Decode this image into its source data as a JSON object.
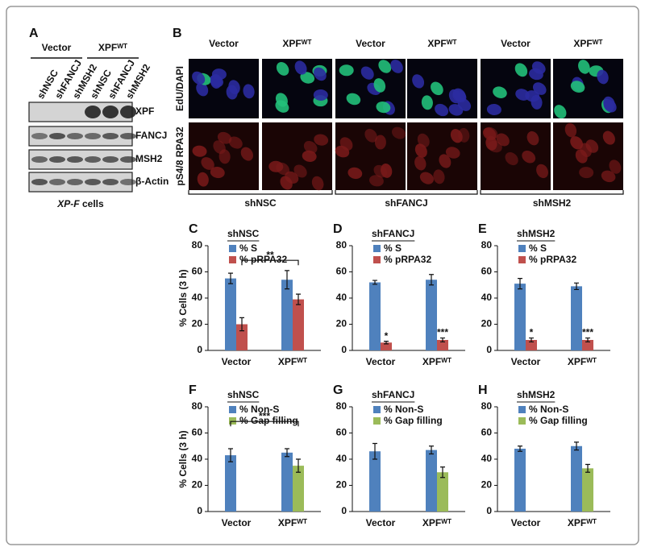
{
  "panel_a": {
    "label": "A",
    "groups": [
      "Vector",
      "XPFᵂᵀ"
    ],
    "lanes": [
      "shNSC",
      "shFANCJ",
      "shMSH2",
      "shNSC",
      "shFANCJ",
      "shMSH2"
    ],
    "blots": [
      "XPF",
      "FANCJ",
      "MSH2",
      "β-Actin"
    ],
    "caption_italic": "XP-F",
    "caption": "cells"
  },
  "panel_b": {
    "label": "B",
    "columns": [
      "Vector",
      "XPFᵂᵀ",
      "Vector",
      "XPFᵂᵀ",
      "Vector",
      "XPFᵂᵀ"
    ],
    "rows": [
      "EdU/DAPI",
      "pS4/8 RPA32"
    ],
    "groups": [
      "shNSC",
      "shFANCJ",
      "shMSH2"
    ]
  },
  "chart_data": [
    {
      "type": "bar",
      "panel": "C",
      "title": "shNSC",
      "ylabel": "% Cells (3 h)",
      "categories": [
        "Vector",
        "XPFᵂᵀ"
      ],
      "series": [
        {
          "name": "% S",
          "color": "#4f81bd",
          "values": [
            55,
            54
          ],
          "errors": [
            4,
            7
          ]
        },
        {
          "name": "% pRPA32",
          "color": "#c0504d",
          "values": [
            20,
            39
          ],
          "errors": [
            5,
            4
          ]
        }
      ],
      "ylim": [
        0,
        80
      ],
      "yticks": [
        0,
        20,
        40,
        60,
        80
      ],
      "bracket_label": "**"
    },
    {
      "type": "bar",
      "panel": "D",
      "title": "shFANCJ",
      "categories": [
        "Vector",
        "XPFᵂᵀ"
      ],
      "series": [
        {
          "name": "% S",
          "color": "#4f81bd",
          "values": [
            52,
            54
          ],
          "errors": [
            1.5,
            4
          ]
        },
        {
          "name": "% pRPA32",
          "color": "#c0504d",
          "values": [
            6,
            8
          ],
          "errors": [
            1,
            1.5
          ],
          "annotations": [
            "*",
            "***"
          ]
        }
      ],
      "ylim": [
        0,
        80
      ],
      "yticks": [
        0,
        20,
        40,
        60,
        80
      ]
    },
    {
      "type": "bar",
      "panel": "E",
      "title": "shMSH2",
      "categories": [
        "Vector",
        "XPFᵂᵀ"
      ],
      "series": [
        {
          "name": "% S",
          "color": "#4f81bd",
          "values": [
            51,
            49
          ],
          "errors": [
            4,
            2.5
          ]
        },
        {
          "name": "% pRPA32",
          "color": "#c0504d",
          "values": [
            8,
            8
          ],
          "errors": [
            1.5,
            1.5
          ],
          "annotations": [
            "*",
            "***"
          ]
        }
      ],
      "ylim": [
        0,
        80
      ],
      "yticks": [
        0,
        20,
        40,
        60,
        80
      ]
    },
    {
      "type": "bar",
      "panel": "F",
      "title": "shNSC",
      "ylabel": "% Cells (3 h)",
      "categories": [
        "Vector",
        "XPFᵂᵀ"
      ],
      "series": [
        {
          "name": "% Non-S",
          "color": "#4f81bd",
          "values": [
            43,
            45
          ],
          "errors": [
            5,
            3
          ]
        },
        {
          "name": "% Gap filling",
          "color": "#9bbb59",
          "values": [
            null,
            35
          ],
          "errors": [
            null,
            5
          ]
        }
      ],
      "ylim": [
        0,
        80
      ],
      "yticks": [
        0,
        20,
        40,
        60,
        80
      ],
      "bracket_label": "***"
    },
    {
      "type": "bar",
      "panel": "G",
      "title": "shFANCJ",
      "categories": [
        "Vector",
        "XPFᵂᵀ"
      ],
      "series": [
        {
          "name": "% Non-S",
          "color": "#4f81bd",
          "values": [
            46,
            47
          ],
          "errors": [
            6,
            3
          ]
        },
        {
          "name": "% Gap filling",
          "color": "#9bbb59",
          "values": [
            null,
            30
          ],
          "errors": [
            null,
            4
          ]
        }
      ],
      "ylim": [
        0,
        80
      ],
      "yticks": [
        0,
        20,
        40,
        60,
        80
      ]
    },
    {
      "type": "bar",
      "panel": "H",
      "title": "shMSH2",
      "categories": [
        "Vector",
        "XPFᵂᵀ"
      ],
      "series": [
        {
          "name": "% Non-S",
          "color": "#4f81bd",
          "values": [
            48,
            50
          ],
          "errors": [
            2,
            3
          ]
        },
        {
          "name": "% Gap filling",
          "color": "#9bbb59",
          "values": [
            null,
            33
          ],
          "errors": [
            null,
            3
          ]
        }
      ],
      "ylim": [
        0,
        80
      ],
      "yticks": [
        0,
        20,
        40,
        60,
        80
      ]
    }
  ]
}
